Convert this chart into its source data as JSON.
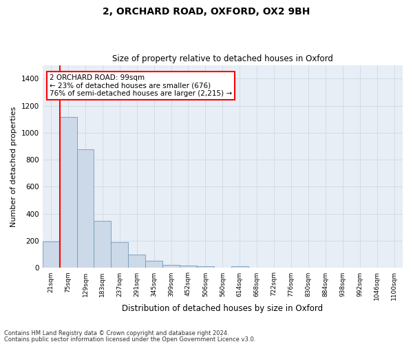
{
  "title_line1": "2, ORCHARD ROAD, OXFORD, OX2 9BH",
  "title_line2": "Size of property relative to detached houses in Oxford",
  "xlabel": "Distribution of detached houses by size in Oxford",
  "ylabel": "Number of detached properties",
  "footnote1": "Contains HM Land Registry data © Crown copyright and database right 2024.",
  "footnote2": "Contains public sector information licensed under the Open Government Licence v3.0.",
  "bar_labels": [
    "21sqm",
    "75sqm",
    "129sqm",
    "183sqm",
    "237sqm",
    "291sqm",
    "345sqm",
    "399sqm",
    "452sqm",
    "506sqm",
    "560sqm",
    "614sqm",
    "668sqm",
    "722sqm",
    "776sqm",
    "830sqm",
    "884sqm",
    "938sqm",
    "992sqm",
    "1046sqm",
    "1100sqm"
  ],
  "bar_values": [
    195,
    1115,
    875,
    350,
    192,
    100,
    52,
    22,
    18,
    15,
    0,
    13,
    0,
    0,
    0,
    0,
    0,
    0,
    0,
    0,
    0
  ],
  "bar_color": "#ccd9e8",
  "bar_edge_color": "#7099bb",
  "ylim": [
    0,
    1500
  ],
  "yticks": [
    0,
    200,
    400,
    600,
    800,
    1000,
    1200,
    1400
  ],
  "property_line_color": "#ff0000",
  "annotation_box_text": "2 ORCHARD ROAD: 99sqm\n← 23% of detached houses are smaller (676)\n76% of semi-detached houses are larger (2,215) →",
  "grid_color": "#d0d8e4",
  "fig_bg_color": "#ffffff",
  "plot_bg_color": "#e8eef5"
}
